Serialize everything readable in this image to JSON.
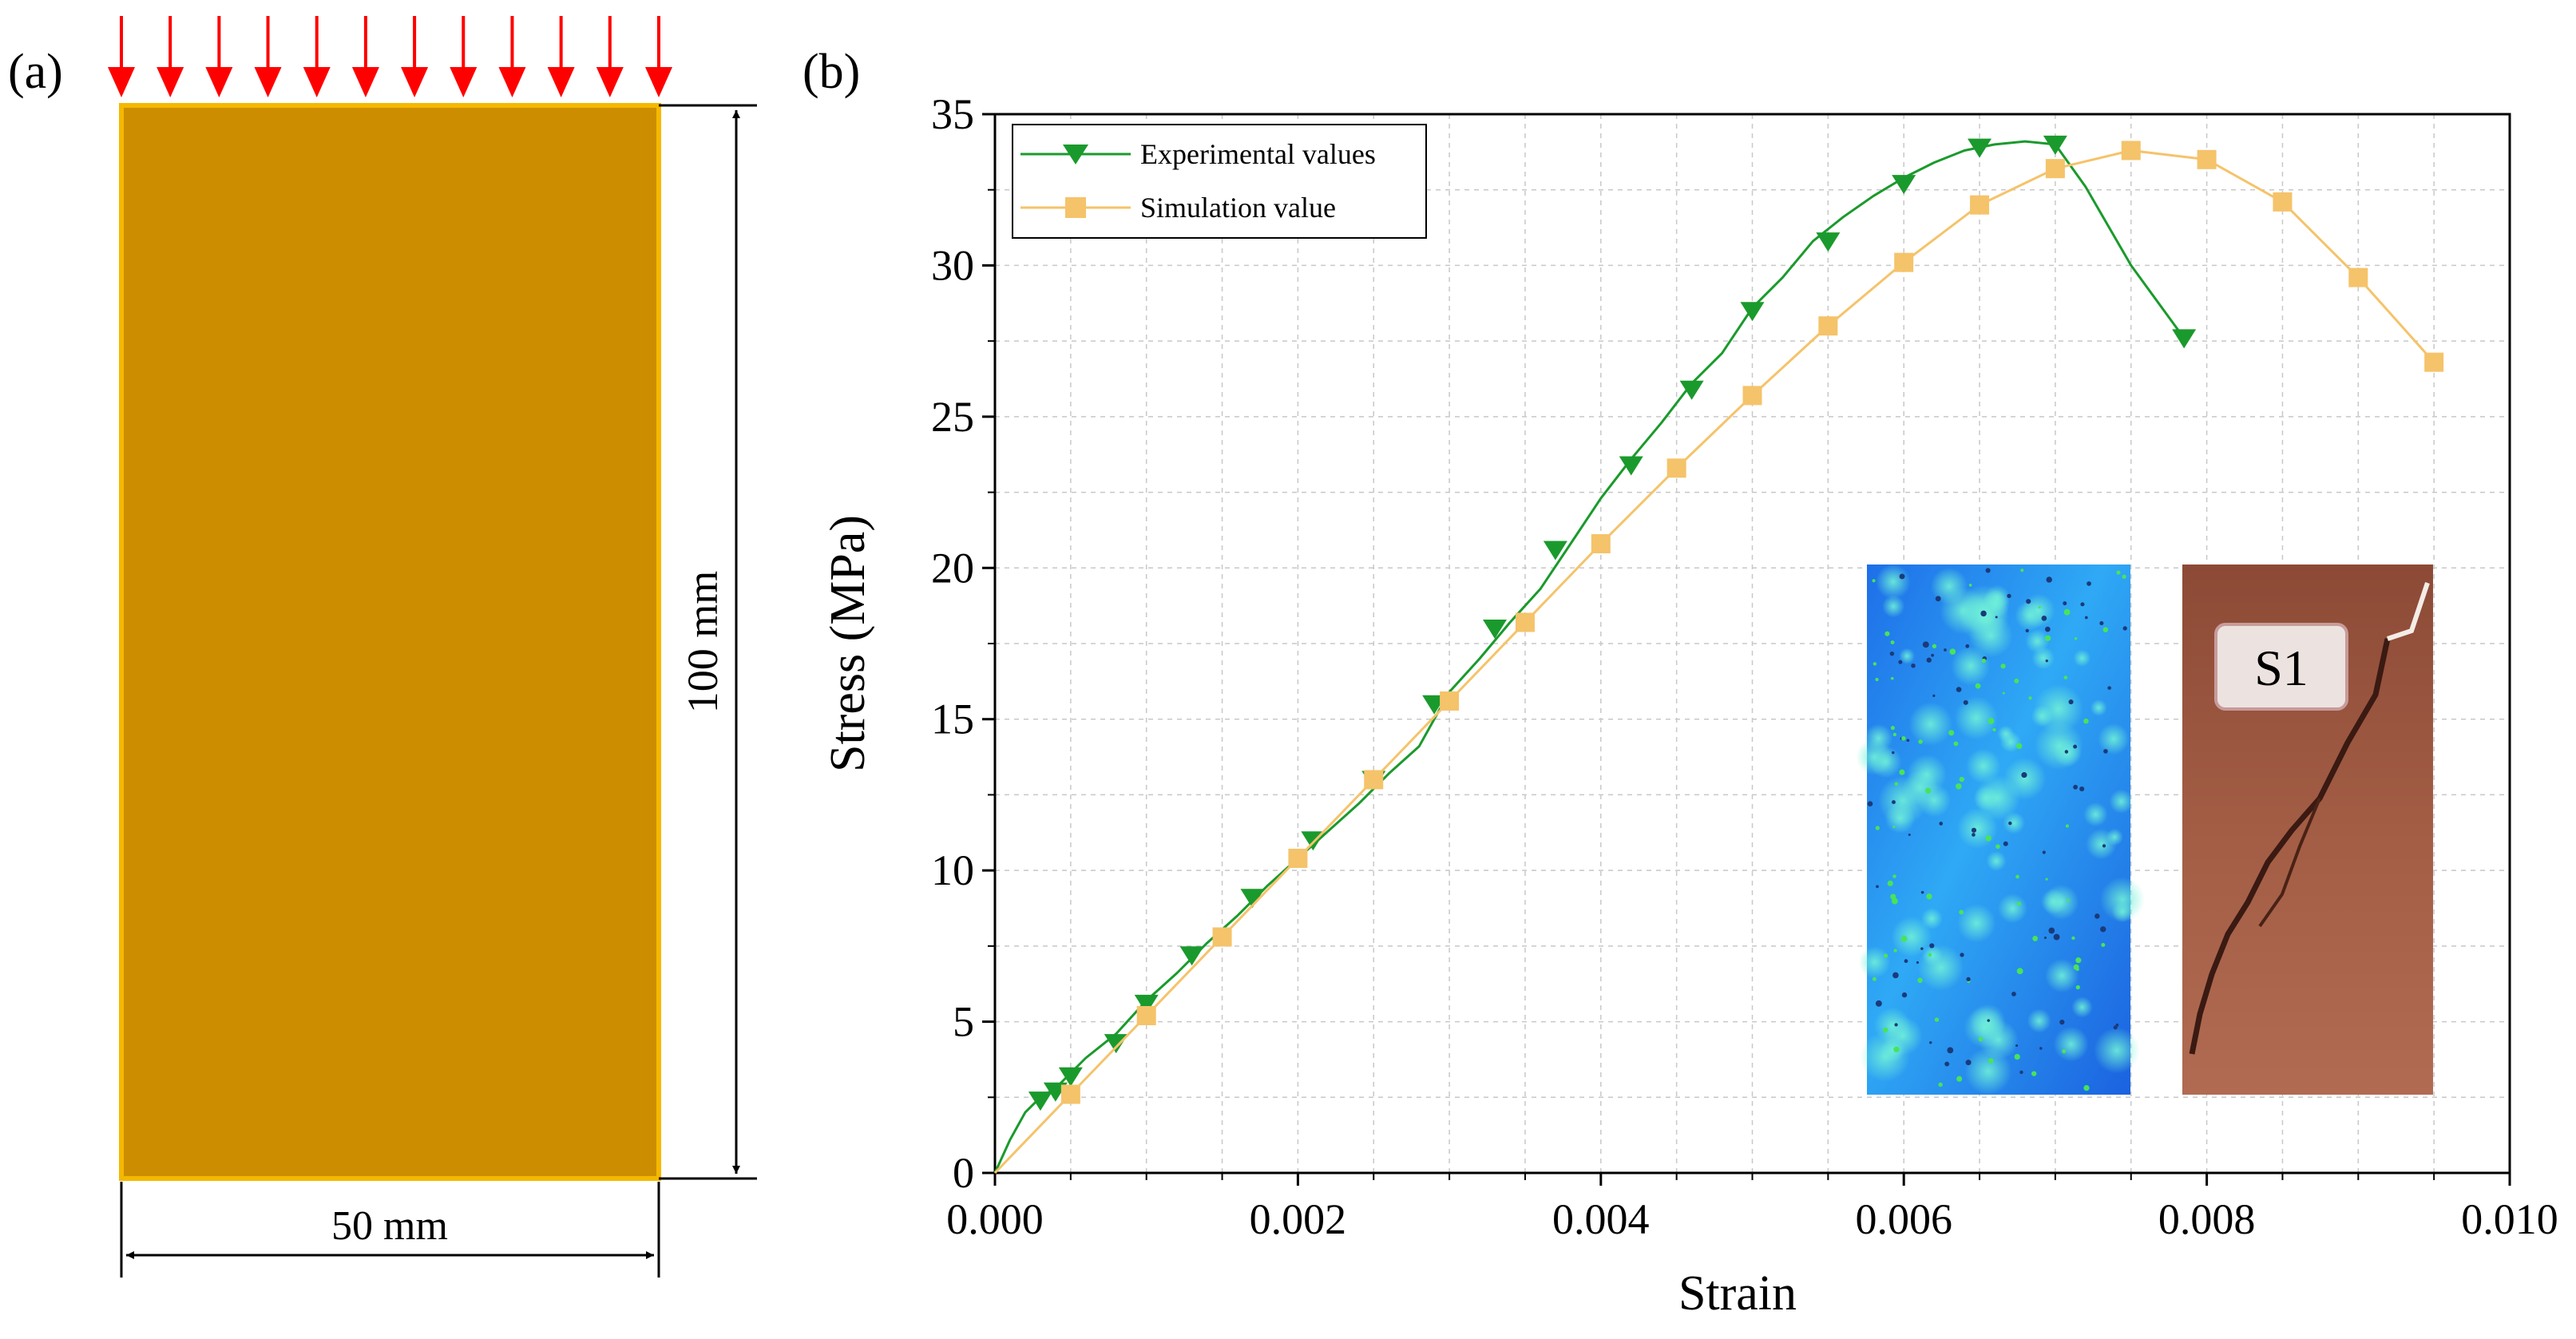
{
  "colors": {
    "specimen_fill": "#CC8E00",
    "specimen_border": "#F5B800",
    "load_arrow": "#FF0000",
    "experimental_series": "#1A9A2C",
    "simulation_series": "#F5C36A",
    "grid": "#C8C8C8",
    "axis": "#000000"
  },
  "panel_a": {
    "label": "(a)",
    "height_label": "100 mm",
    "width_label": "50 mm",
    "load_arrow_count": 12
  },
  "chart_data": {
    "type": "line",
    "panel_label": "(b)",
    "xlabel": "Strain",
    "ylabel": "Stress (MPa)",
    "xlim": [
      0,
      0.01
    ],
    "ylim": [
      0,
      35
    ],
    "xticks": [
      0,
      0.002,
      0.004,
      0.006,
      0.008,
      0.01
    ],
    "xtick_labels": [
      "0.000",
      "0.002",
      "0.004",
      "0.006",
      "0.008",
      "0.010"
    ],
    "yticks": [
      0,
      5,
      10,
      15,
      20,
      25,
      30,
      35
    ],
    "ytick_labels": [
      "0",
      "5",
      "10",
      "15",
      "20",
      "25",
      "30",
      "35"
    ],
    "grid": true,
    "legend_position": "top-left",
    "series": [
      {
        "name": "Experimental values",
        "marker": "triangle-down",
        "color": "#1A9A2C",
        "line_x": [
          0,
          0.0001,
          0.0002,
          0.0003,
          0.0004,
          0.0005,
          0.0006,
          0.0008,
          0.001,
          0.0012,
          0.0014,
          0.0016,
          0.0018,
          0.002,
          0.0022,
          0.0024,
          0.0026,
          0.0028,
          0.003,
          0.0032,
          0.0034,
          0.0036,
          0.0038,
          0.004,
          0.0042,
          0.0044,
          0.0046,
          0.0048,
          0.005,
          0.0052,
          0.0054,
          0.0056,
          0.0058,
          0.006,
          0.0062,
          0.0064,
          0.0066,
          0.0068,
          0.007,
          0.0072,
          0.0075,
          0.00785
        ],
        "line_y": [
          0,
          1.1,
          2.0,
          2.5,
          2.8,
          3.3,
          3.8,
          4.6,
          5.7,
          6.6,
          7.6,
          8.5,
          9.5,
          10.4,
          11.3,
          12.2,
          13.2,
          14.1,
          15.9,
          17.0,
          18.2,
          19.3,
          20.8,
          22.3,
          23.6,
          24.8,
          26.1,
          27.1,
          28.6,
          29.6,
          30.8,
          31.6,
          32.3,
          32.9,
          33.4,
          33.8,
          34.0,
          34.1,
          34.0,
          32.6,
          30.0,
          27.6
        ],
        "marker_x": [
          0.0003,
          0.0004,
          0.0005,
          0.0008,
          0.001,
          0.0013,
          0.0017,
          0.0021,
          0.0025,
          0.0029,
          0.0033,
          0.0037,
          0.0042,
          0.0046,
          0.005,
          0.0055,
          0.006,
          0.0065,
          0.007,
          0.00785
        ],
        "marker_y": [
          2.4,
          2.7,
          3.2,
          4.3,
          5.6,
          7.2,
          9.1,
          11.0,
          13.0,
          15.5,
          18.0,
          20.6,
          23.4,
          25.9,
          28.5,
          30.8,
          32.7,
          33.9,
          34.0,
          27.6
        ]
      },
      {
        "name": "Simulation value",
        "marker": "square",
        "color": "#F5C36A",
        "line_x": [
          0,
          0.0005,
          0.001,
          0.0015,
          0.002,
          0.0025,
          0.003,
          0.0035,
          0.004,
          0.0045,
          0.005,
          0.0055,
          0.006,
          0.0065,
          0.007,
          0.0075,
          0.008,
          0.0085,
          0.009,
          0.0095
        ],
        "line_y": [
          0,
          2.6,
          5.2,
          7.8,
          10.4,
          13.0,
          15.6,
          18.2,
          20.8,
          23.3,
          25.7,
          28.0,
          30.1,
          32.0,
          33.2,
          33.8,
          33.5,
          32.1,
          29.6,
          26.8
        ],
        "marker_x": [
          0.0005,
          0.001,
          0.0015,
          0.002,
          0.0025,
          0.003,
          0.0035,
          0.004,
          0.0045,
          0.005,
          0.0055,
          0.006,
          0.0065,
          0.007,
          0.0075,
          0.008,
          0.0085,
          0.009,
          0.0095
        ],
        "marker_y": [
          2.6,
          5.2,
          7.8,
          10.4,
          13.0,
          15.6,
          18.2,
          20.8,
          23.3,
          25.7,
          28.0,
          30.1,
          32.0,
          33.2,
          33.8,
          33.5,
          32.1,
          29.6,
          26.8
        ]
      }
    ],
    "insets": [
      {
        "name": "simulation-crack-contour",
        "description_kind": "simulation"
      },
      {
        "name": "specimen-photo",
        "label": "S1"
      }
    ]
  }
}
